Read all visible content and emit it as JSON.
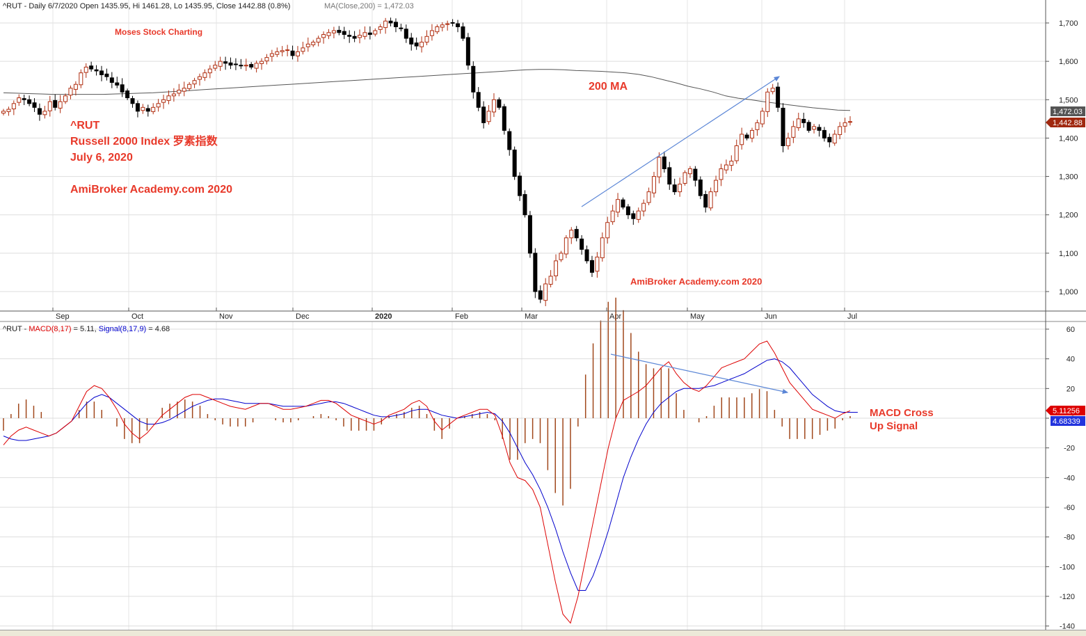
{
  "header": {
    "price_info": "^RUT - Daily 6/7/2020 Open 1435.95, Hi 1461.28, Lo 1435.95, Close 1442.88 (0.8%)",
    "ma_info": "MA(Close,200) = 1,472.03",
    "macd_prefix": "^RUT - ",
    "macd_label": "MACD(8,17)",
    "macd_value": " = 5.11, ",
    "signal_label": "Signal(8,17,9)",
    "signal_value": " = 4.68"
  },
  "annotations": {
    "moses": "Moses Stock Charting",
    "ticker": "^RUT",
    "index_name": "Russell 2000 Index 罗素指数",
    "date": "July 6, 2020",
    "site1": "AmiBroker Academy.com  2020",
    "ma200": "200 MA",
    "site2": "AmiBroker Academy.com  2020",
    "macd_cross_1": "MACD Cross",
    "macd_cross_2": "Up Signal"
  },
  "badges": {
    "ma_value": "1,472.03",
    "close_value": "1,442.88",
    "macd_value": "5.11256",
    "signal_value": "4.68339"
  },
  "colors": {
    "up_candle": "#b02d0f",
    "down_candle": "#000000",
    "ma_line": "#555555",
    "macd_line": "#dd0000",
    "signal_line": "#0000cc",
    "histogram": "#a0471b",
    "annotation": "#e8392a",
    "trend_arrow": "#5b86d6"
  },
  "chart_data": [
    {
      "type": "candlestick",
      "title": "^RUT - Daily",
      "x_ticks": [
        "Sep",
        "Oct",
        "Nov",
        "Dec",
        "2020",
        "Feb",
        "Mar",
        "Apr",
        "May",
        "Jun",
        "Jul"
      ],
      "y_ticks": [
        "1,000",
        "1,100",
        "1,200",
        "1,300",
        "1,400",
        "1,500",
        "1,600",
        "1,700"
      ],
      "ylim": [
        945,
        1730
      ],
      "close_series": [
        1470,
        1475,
        1490,
        1505,
        1500,
        1490,
        1480,
        1462,
        1470,
        1495,
        1480,
        1495,
        1510,
        1530,
        1540,
        1570,
        1585,
        1580,
        1575,
        1565,
        1560,
        1545,
        1538,
        1520,
        1505,
        1490,
        1470,
        1480,
        1470,
        1480,
        1490,
        1500,
        1510,
        1515,
        1525,
        1530,
        1540,
        1550,
        1560,
        1570,
        1580,
        1590,
        1600,
        1595,
        1590,
        1592,
        1588,
        1590,
        1585,
        1595,
        1600,
        1610,
        1620,
        1625,
        1628,
        1630,
        1615,
        1625,
        1635,
        1645,
        1650,
        1660,
        1670,
        1675,
        1680,
        1675,
        1670,
        1665,
        1660,
        1668,
        1675,
        1670,
        1680,
        1690,
        1705,
        1700,
        1690,
        1685,
        1660,
        1645,
        1640,
        1650,
        1665,
        1680,
        1690,
        1695,
        1698,
        1700,
        1690,
        1660,
        1590,
        1520,
        1480,
        1440,
        1470,
        1500,
        1480,
        1420,
        1370,
        1300,
        1250,
        1200,
        1100,
        1000,
        980,
        1020,
        1040,
        1080,
        1100,
        1140,
        1160,
        1140,
        1110,
        1080,
        1050,
        1090,
        1140,
        1180,
        1210,
        1240,
        1220,
        1200,
        1190,
        1210,
        1230,
        1260,
        1300,
        1350,
        1320,
        1280,
        1260,
        1280,
        1310,
        1320,
        1290,
        1250,
        1220,
        1260,
        1290,
        1320,
        1330,
        1340,
        1380,
        1410,
        1400,
        1420,
        1440,
        1470,
        1520,
        1530,
        1480,
        1380,
        1400,
        1430,
        1450,
        1440,
        1420,
        1430,
        1420,
        1400,
        1390,
        1410,
        1430,
        1440,
        1443
      ],
      "ma200_series": [
        1518,
        1517,
        1516,
        1515,
        1514,
        1514,
        1514,
        1514,
        1514,
        1515,
        1516,
        1517,
        1518,
        1520,
        1522,
        1524,
        1526,
        1528,
        1530,
        1532,
        1534,
        1536,
        1538,
        1540,
        1542,
        1544,
        1546,
        1548,
        1550,
        1552,
        1554,
        1556,
        1558,
        1560,
        1562,
        1564,
        1566,
        1568,
        1570,
        1572,
        1574,
        1576,
        1578,
        1579,
        1579,
        1578,
        1576,
        1575,
        1574,
        1572,
        1570,
        1566,
        1560,
        1552,
        1544,
        1535,
        1528,
        1520,
        1510,
        1504,
        1500,
        1495,
        1491,
        1487,
        1483,
        1479,
        1476,
        1473,
        1472
      ]
    },
    {
      "type": "line",
      "title": "MACD(8,17)",
      "x_ticks": [
        "Sep",
        "Oct",
        "Nov",
        "Dec",
        "2020",
        "Feb",
        "Mar",
        "Apr",
        "May",
        "Jun",
        "Jul"
      ],
      "y_ticks": [
        "60",
        "40",
        "20",
        "0",
        "-20",
        "-40",
        "-60",
        "-80",
        "-100",
        "-120",
        "-140"
      ],
      "ylim": [
        -145,
        62
      ],
      "series": [
        {
          "name": "MACD(8,17)",
          "values": [
            -18,
            -12,
            -8,
            -6,
            -8,
            -10,
            -12,
            -10,
            -6,
            -2,
            8,
            18,
            22,
            20,
            14,
            6,
            -4,
            -10,
            -14,
            -10,
            -4,
            2,
            6,
            10,
            14,
            16,
            16,
            14,
            12,
            10,
            8,
            7,
            6,
            8,
            10,
            10,
            8,
            6,
            6,
            7,
            8,
            10,
            12,
            12,
            10,
            6,
            2,
            0,
            -2,
            -4,
            -2,
            2,
            4,
            6,
            10,
            12,
            8,
            -2,
            -8,
            -4,
            0,
            2,
            4,
            6,
            6,
            2,
            -12,
            -30,
            -40,
            -42,
            -48,
            -60,
            -85,
            -110,
            -132,
            -138,
            -120,
            -95,
            -70,
            -45,
            -20,
            0,
            12,
            15,
            18,
            22,
            28,
            34,
            38,
            30,
            24,
            20,
            18,
            22,
            28,
            34,
            36,
            38,
            40,
            45,
            50,
            52,
            44,
            34,
            24,
            18,
            12,
            6,
            4,
            2,
            0,
            3,
            5
          ]
        },
        {
          "name": "Signal(8,17,9)",
          "values": [
            -12,
            -14,
            -15,
            -15,
            -14,
            -13,
            -12,
            -10,
            -6,
            -2,
            4,
            10,
            14,
            16,
            14,
            10,
            6,
            2,
            -2,
            -4,
            -4,
            -3,
            -1,
            2,
            5,
            8,
            10,
            12,
            13,
            13,
            12,
            11,
            10,
            10,
            10,
            10,
            9,
            8,
            8,
            8,
            8,
            9,
            10,
            11,
            11,
            10,
            8,
            6,
            4,
            2,
            1,
            1,
            2,
            3,
            5,
            6,
            6,
            4,
            2,
            1,
            0,
            1,
            2,
            3,
            4,
            3,
            -2,
            -10,
            -20,
            -30,
            -38,
            -48,
            -60,
            -74,
            -90,
            -104,
            -116,
            -116,
            -106,
            -92,
            -76,
            -58,
            -40,
            -26,
            -14,
            -4,
            4,
            10,
            14,
            18,
            20,
            20,
            20,
            21,
            22,
            24,
            26,
            28,
            30,
            33,
            36,
            39,
            40,
            38,
            34,
            28,
            22,
            16,
            12,
            8,
            5,
            4,
            4,
            4
          ]
        }
      ]
    }
  ]
}
